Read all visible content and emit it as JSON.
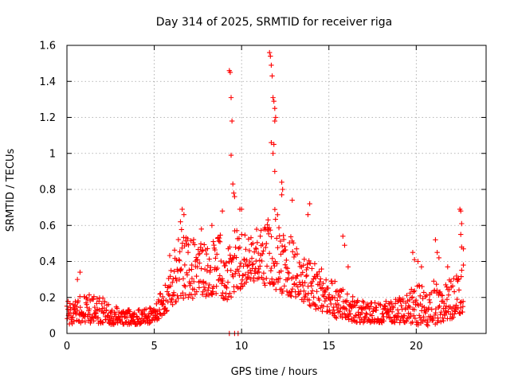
{
  "chart_data": {
    "type": "scatter",
    "title": "Day 314 of 2025, SRMTID for receiver riga",
    "xlabel": "GPS time / hours",
    "ylabel": "SRMTID / TECUs",
    "xlim": [
      0,
      24
    ],
    "ylim": [
      0,
      1.6
    ],
    "xticks": [
      0,
      5,
      10,
      15,
      20
    ],
    "xtick_labels": [
      "0",
      "5",
      "10",
      "15",
      "20"
    ],
    "yticks": [
      0,
      0.2,
      0.4,
      0.6,
      0.8,
      1.0,
      1.2,
      1.4,
      1.6
    ],
    "ytick_labels": [
      "0",
      "0.2",
      "0.4",
      "0.6",
      "0.8",
      "1",
      "1.2",
      "1.4",
      "1.6"
    ],
    "grid": true,
    "marker": "+",
    "color": "#ff0000",
    "envelope": {
      "note": "approximate band of the dense point cloud, hours vs SRMTID (TECU)",
      "hours": [
        0,
        1,
        2,
        3,
        4,
        5,
        5.5,
        6,
        6.5,
        7,
        7.5,
        8,
        8.5,
        9,
        9.5,
        10,
        10.5,
        11,
        11.5,
        12,
        12.5,
        13,
        13.5,
        14,
        14.5,
        15,
        15.5,
        16,
        16.5,
        17,
        17.5,
        18,
        18.5,
        19,
        19.5,
        20,
        20.5,
        21,
        21.5,
        22,
        22.7
      ],
      "low": [
        0.05,
        0.06,
        0.05,
        0.05,
        0.05,
        0.06,
        0.1,
        0.15,
        0.2,
        0.18,
        0.2,
        0.2,
        0.22,
        0.18,
        0.2,
        0.25,
        0.3,
        0.28,
        0.25,
        0.22,
        0.22,
        0.2,
        0.18,
        0.15,
        0.12,
        0.12,
        0.08,
        0.08,
        0.06,
        0.06,
        0.06,
        0.06,
        0.06,
        0.06,
        0.06,
        0.05,
        0.04,
        0.05,
        0.06,
        0.08,
        0.12
      ],
      "high": [
        0.18,
        0.22,
        0.2,
        0.14,
        0.13,
        0.15,
        0.28,
        0.48,
        0.6,
        0.55,
        0.5,
        0.5,
        0.55,
        0.55,
        0.6,
        0.55,
        0.55,
        0.6,
        0.68,
        0.7,
        0.62,
        0.5,
        0.45,
        0.4,
        0.38,
        0.32,
        0.28,
        0.24,
        0.2,
        0.18,
        0.18,
        0.18,
        0.18,
        0.2,
        0.22,
        0.3,
        0.25,
        0.3,
        0.25,
        0.32,
        0.4
      ]
    },
    "outliers": [
      {
        "x": 0.75,
        "y": 0.34
      },
      {
        "x": 0.6,
        "y": 0.3
      },
      {
        "x": 6.6,
        "y": 0.69
      },
      {
        "x": 6.7,
        "y": 0.66
      },
      {
        "x": 6.5,
        "y": 0.62
      },
      {
        "x": 7.7,
        "y": 0.58
      },
      {
        "x": 8.3,
        "y": 0.6
      },
      {
        "x": 8.9,
        "y": 0.68
      },
      {
        "x": 9.3,
        "y": 1.46
      },
      {
        "x": 9.35,
        "y": 1.45
      },
      {
        "x": 9.4,
        "y": 1.31
      },
      {
        "x": 9.45,
        "y": 1.18
      },
      {
        "x": 9.4,
        "y": 0.99
      },
      {
        "x": 9.5,
        "y": 0.83
      },
      {
        "x": 9.55,
        "y": 0.78
      },
      {
        "x": 9.6,
        "y": 0.76
      },
      {
        "x": 9.3,
        "y": 0.0
      },
      {
        "x": 9.6,
        "y": 0.0
      },
      {
        "x": 9.8,
        "y": 0.0
      },
      {
        "x": 9.9,
        "y": 0.69
      },
      {
        "x": 10.0,
        "y": 0.69
      },
      {
        "x": 11.6,
        "y": 1.56
      },
      {
        "x": 11.65,
        "y": 1.54
      },
      {
        "x": 11.7,
        "y": 1.49
      },
      {
        "x": 11.75,
        "y": 1.43
      },
      {
        "x": 11.8,
        "y": 1.31
      },
      {
        "x": 11.85,
        "y": 1.29
      },
      {
        "x": 11.9,
        "y": 1.25
      },
      {
        "x": 11.95,
        "y": 1.2
      },
      {
        "x": 11.9,
        "y": 1.18
      },
      {
        "x": 11.7,
        "y": 1.06
      },
      {
        "x": 11.85,
        "y": 1.05
      },
      {
        "x": 11.8,
        "y": 1.0
      },
      {
        "x": 11.9,
        "y": 0.9
      },
      {
        "x": 12.3,
        "y": 0.84
      },
      {
        "x": 12.35,
        "y": 0.8
      },
      {
        "x": 12.3,
        "y": 0.77
      },
      {
        "x": 12.9,
        "y": 0.74
      },
      {
        "x": 13.9,
        "y": 0.72
      },
      {
        "x": 13.8,
        "y": 0.66
      },
      {
        "x": 15.8,
        "y": 0.54
      },
      {
        "x": 15.9,
        "y": 0.49
      },
      {
        "x": 16.1,
        "y": 0.37
      },
      {
        "x": 19.8,
        "y": 0.45
      },
      {
        "x": 19.9,
        "y": 0.41
      },
      {
        "x": 20.1,
        "y": 0.4
      },
      {
        "x": 20.3,
        "y": 0.37
      },
      {
        "x": 21.1,
        "y": 0.52
      },
      {
        "x": 21.2,
        "y": 0.45
      },
      {
        "x": 21.3,
        "y": 0.42
      },
      {
        "x": 21.8,
        "y": 0.37
      },
      {
        "x": 22.5,
        "y": 0.69
      },
      {
        "x": 22.55,
        "y": 0.68
      },
      {
        "x": 22.6,
        "y": 0.61
      },
      {
        "x": 22.55,
        "y": 0.55
      },
      {
        "x": 22.6,
        "y": 0.48
      },
      {
        "x": 22.7,
        "y": 0.47
      },
      {
        "x": 22.7,
        "y": 0.38
      }
    ],
    "samples_per_hour": 50,
    "data_end_hour": 22.7
  }
}
